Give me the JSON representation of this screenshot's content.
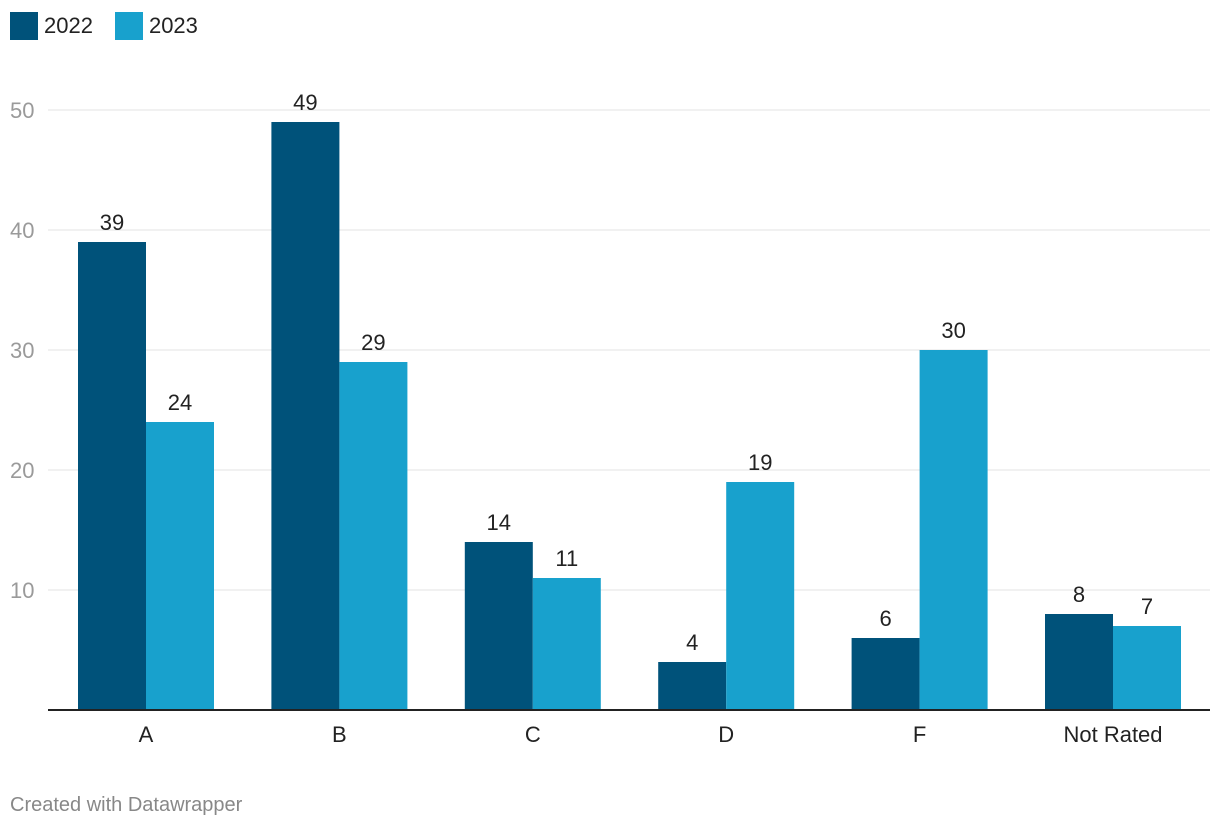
{
  "chart_data": {
    "type": "bar",
    "categories": [
      "A",
      "B",
      "C",
      "D",
      "F",
      "Not Rated"
    ],
    "series": [
      {
        "name": "2022",
        "values": [
          39,
          49,
          14,
          4,
          6,
          8
        ],
        "color": "#00527a"
      },
      {
        "name": "2023",
        "values": [
          24,
          29,
          11,
          19,
          30,
          7
        ],
        "color": "#18a1cd"
      }
    ],
    "title": "",
    "xlabel": "",
    "ylabel": "",
    "ylim": [
      0,
      50
    ],
    "yticks": [
      10,
      20,
      30,
      40,
      50
    ],
    "grid": true,
    "legend_position": "top-left",
    "data_labels": true
  },
  "footer": {
    "credit": "Created with Datawrapper"
  }
}
